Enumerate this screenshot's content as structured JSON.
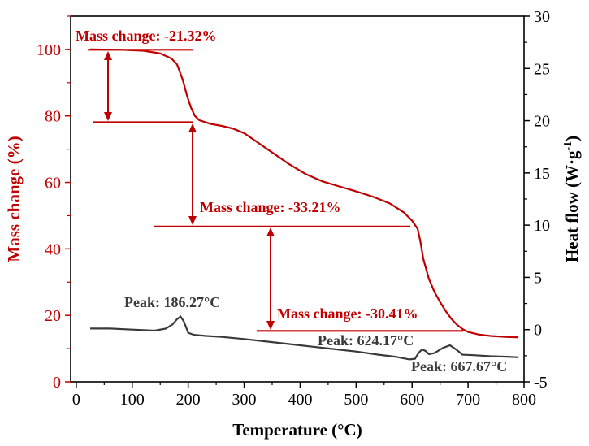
{
  "chart_data": {
    "type": "line",
    "xlabel": "Temperature (°C)",
    "ylabel_left": "Mass change (%)",
    "ylabel_right_main": "Heat flow (W·g",
    "ylabel_right_sup": "-1",
    "ylabel_right_end": ")",
    "xlim": [
      -10,
      800
    ],
    "ylim_left": [
      0,
      110
    ],
    "ylim_right": [
      -5,
      30
    ],
    "x_ticks": [
      "0",
      "100",
      "200",
      "300",
      "400",
      "500",
      "600",
      "700",
      "800"
    ],
    "y_ticks_left": [
      "0",
      "20",
      "40",
      "60",
      "80",
      "100"
    ],
    "y_ticks_right": [
      "-5",
      "0",
      "5",
      "10",
      "15",
      "20",
      "25",
      "30"
    ],
    "grid": false,
    "colors": {
      "mass": "#c00000",
      "heat": "#3a3a3a",
      "axis": "#000000"
    },
    "series": [
      {
        "axis": "left",
        "points": [
          [
            25,
            100
          ],
          [
            80,
            99.9
          ],
          [
            120,
            99.6
          ],
          [
            150,
            98.8
          ],
          [
            170,
            97.3
          ],
          [
            180,
            95.5
          ],
          [
            190,
            91
          ],
          [
            198,
            86
          ],
          [
            205,
            82.5
          ],
          [
            212,
            80
          ],
          [
            220,
            78.7
          ],
          [
            240,
            77.6
          ],
          [
            260,
            77
          ],
          [
            280,
            76.2
          ],
          [
            300,
            74.8
          ],
          [
            320,
            72.5
          ],
          [
            350,
            69
          ],
          [
            380,
            65.5
          ],
          [
            410,
            62.5
          ],
          [
            440,
            60.3
          ],
          [
            470,
            58.8
          ],
          [
            500,
            57.3
          ],
          [
            530,
            55.7
          ],
          [
            560,
            53.7
          ],
          [
            585,
            51
          ],
          [
            600,
            48.5
          ],
          [
            610,
            46
          ],
          [
            615,
            42
          ],
          [
            620,
            37
          ],
          [
            630,
            31
          ],
          [
            640,
            27
          ],
          [
            650,
            24
          ],
          [
            660,
            21.3
          ],
          [
            670,
            19
          ],
          [
            680,
            17.2
          ],
          [
            690,
            15.9
          ],
          [
            700,
            15
          ],
          [
            720,
            14.2
          ],
          [
            740,
            13.8
          ],
          [
            770,
            13.5
          ],
          [
            790,
            13.4
          ]
        ]
      },
      {
        "axis": "right",
        "points": [
          [
            25,
            0.1
          ],
          [
            60,
            0.1
          ],
          [
            100,
            0
          ],
          [
            140,
            -0.1
          ],
          [
            160,
            0.1
          ],
          [
            172,
            0.5
          ],
          [
            180,
            1
          ],
          [
            186.27,
            1.25
          ],
          [
            192,
            0.8
          ],
          [
            200,
            -0.3
          ],
          [
            210,
            -0.5
          ],
          [
            230,
            -0.6
          ],
          [
            260,
            -0.7
          ],
          [
            300,
            -0.9
          ],
          [
            350,
            -1.2
          ],
          [
            400,
            -1.5
          ],
          [
            450,
            -1.8
          ],
          [
            500,
            -2.1
          ],
          [
            540,
            -2.4
          ],
          [
            570,
            -2.6
          ],
          [
            595,
            -2.85
          ],
          [
            605,
            -2.8
          ],
          [
            612,
            -2.2
          ],
          [
            618,
            -1.9
          ],
          [
            624.17,
            -2.05
          ],
          [
            630,
            -2.35
          ],
          [
            640,
            -2.25
          ],
          [
            655,
            -1.75
          ],
          [
            667.67,
            -1.5
          ],
          [
            680,
            -1.95
          ],
          [
            690,
            -2.4
          ],
          [
            710,
            -2.45
          ],
          [
            740,
            -2.55
          ],
          [
            770,
            -2.6
          ],
          [
            790,
            -2.65
          ]
        ]
      }
    ],
    "annotations": [
      {
        "text": "Mass change: -21.32%"
      },
      {
        "text": "Mass change: -33.21%"
      },
      {
        "text": "Mass change: -30.41%"
      },
      {
        "text": "Peak: 186.27°C"
      },
      {
        "text": "Peak: 624.17°C"
      },
      {
        "text": "Peak: 667.67°C"
      }
    ]
  }
}
